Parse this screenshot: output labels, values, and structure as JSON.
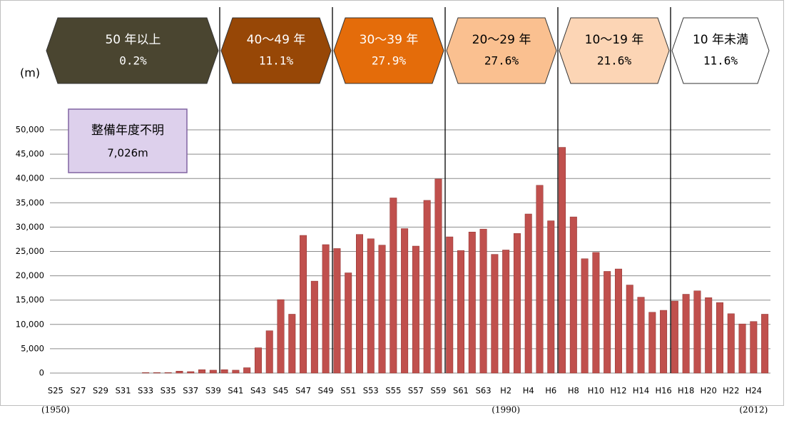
{
  "chart_data": {
    "type": "bar",
    "unit_label": "(m)",
    "categories": [
      "S25",
      null,
      "S27",
      null,
      "S29",
      null,
      "S31",
      null,
      "S33",
      null,
      "S35",
      null,
      "S37",
      null,
      "S39",
      null,
      "S41",
      null,
      "S43",
      null,
      "S45",
      null,
      "S47",
      null,
      "S49",
      null,
      "S51",
      null,
      "S53",
      null,
      "S55",
      null,
      "S57",
      null,
      "S59",
      null,
      "S61",
      null,
      "S63",
      null,
      "H2",
      null,
      "H4",
      null,
      "H6",
      null,
      "H8",
      null,
      "H10",
      null,
      "H12",
      null,
      "H14",
      null,
      "H16",
      null,
      "H18",
      null,
      "H20",
      null,
      "H22",
      null,
      "H24",
      null
    ],
    "values": [
      0,
      0,
      0,
      0,
      0,
      0,
      0,
      0,
      100,
      100,
      100,
      400,
      300,
      700,
      600,
      700,
      600,
      1100,
      5200,
      8700,
      15100,
      12100,
      28300,
      18900,
      26400,
      25600,
      20600,
      28500,
      27600,
      26300,
      36000,
      29700,
      26100,
      35500,
      39900,
      28000,
      25200,
      29000,
      29600,
      24400,
      25300,
      28700,
      32700,
      38600,
      31300,
      46400,
      32100,
      23500,
      24800,
      20900,
      21400,
      18100,
      15600,
      12500,
      12900,
      14800,
      16200,
      16900,
      15500,
      14500,
      12200,
      10100,
      10600,
      12100
    ],
    "color": "#c0504d",
    "ylim": [
      0,
      50000
    ],
    "yticks": [
      0,
      {
        "value": 5000,
        "label": "5,000"
      },
      {
        "value": 10000,
        "label": "10,000"
      },
      {
        "value": 15000,
        "label": "15,000"
      },
      {
        "value": 20000,
        "label": "20,000"
      },
      {
        "value": 25000,
        "label": "25,000"
      },
      {
        "value": 30000,
        "label": "30,000"
      },
      {
        "value": 35000,
        "label": "35,000"
      },
      {
        "value": 40000,
        "label": "40,000"
      },
      {
        "value": 45000,
        "label": "45,000"
      },
      {
        "value": 50000,
        "label": "50,000"
      }
    ],
    "grid": true,
    "year_notes": [
      "(1950)",
      "(1990)",
      "(2012)"
    ],
    "annotation": {
      "title": "整備年度不明",
      "text": "7,026m"
    },
    "age_bands": [
      {
        "label": "50 年以上",
        "share": "0.2%",
        "color": "#4a4530",
        "text_color": "#ffffff"
      },
      {
        "label": "40～49 年",
        "share": "11.1%",
        "color": "#974706",
        "text_color": "#ffffff"
      },
      {
        "label": "30～39 年",
        "share": "27.9%",
        "color": "#e46c0a",
        "text_color": "#ffffff"
      },
      {
        "label": "20～29 年",
        "share": "27.6%",
        "color": "#fac090",
        "text_color": "#000000"
      },
      {
        "label": "10～19 年",
        "share": "21.6%",
        "color": "#fcd5b5",
        "text_color": "#000000"
      },
      {
        "label": "10 年未満",
        "share": "11.6%",
        "color": "#ffffff",
        "text_color": "#000000"
      }
    ]
  }
}
